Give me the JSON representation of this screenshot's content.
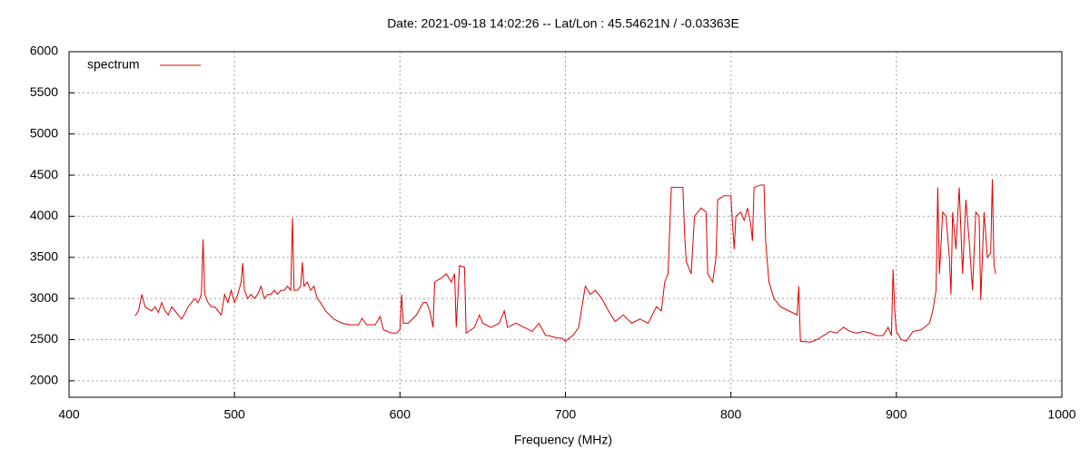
{
  "chart_data": {
    "type": "line",
    "title": "Date: 2021-09-18 14:02:26  --  Lat/Lon : 45.54621N / -0.03363E",
    "x_label": "Frequency (MHz)",
    "xlim": [
      400,
      1000
    ],
    "xticks": [
      400,
      500,
      600,
      700,
      800,
      900,
      1000
    ],
    "ylim": [
      1800,
      6000
    ],
    "yticks": [
      2000,
      2500,
      3000,
      3500,
      4000,
      4500,
      5000,
      5500,
      6000
    ],
    "grid": true,
    "legend": "top-left",
    "x": [
      440,
      442,
      444,
      446,
      448,
      450,
      452,
      454,
      456,
      458,
      460,
      462,
      464,
      466,
      468,
      470,
      472,
      474,
      476,
      478,
      480,
      481,
      482,
      484,
      486,
      488,
      490,
      492,
      494,
      496,
      498,
      500,
      502,
      504,
      505,
      506,
      508,
      510,
      512,
      514,
      516,
      518,
      520,
      522,
      524,
      526,
      528,
      530,
      532,
      534,
      535,
      536,
      538,
      540,
      541,
      542,
      544,
      546,
      548,
      550,
      552,
      555,
      560,
      565,
      570,
      575,
      577,
      580,
      585,
      588,
      590,
      595,
      598,
      600,
      601,
      602,
      605,
      610,
      614,
      616,
      618,
      620,
      621,
      625,
      628,
      631,
      633,
      634,
      636,
      639,
      640,
      645,
      648,
      650,
      655,
      660,
      663,
      665,
      670,
      675,
      680,
      684,
      688,
      690,
      695,
      698,
      700,
      705,
      708,
      710,
      712,
      715,
      718,
      722,
      726,
      730,
      735,
      740,
      745,
      750,
      755,
      758,
      760,
      762,
      764,
      768,
      771,
      772,
      773,
      776,
      778,
      782,
      785,
      786,
      789,
      791,
      792,
      796,
      800,
      801,
      802,
      803,
      806,
      808,
      810,
      812,
      813,
      814,
      818,
      820,
      821,
      823,
      826,
      830,
      835,
      840,
      841,
      842,
      848,
      852,
      856,
      860,
      864,
      868,
      872,
      876,
      880,
      884,
      888,
      892,
      895,
      897,
      898,
      899,
      900,
      903,
      906,
      910,
      915,
      920,
      922,
      924,
      925,
      926,
      928,
      930,
      932,
      933,
      934,
      936,
      938,
      940,
      942,
      944,
      946,
      948,
      950,
      951,
      953,
      955,
      957,
      958,
      959,
      960
    ],
    "series": [
      {
        "name": "spectrum",
        "color": "#dd0000",
        "values": [
          2790,
          2850,
          3050,
          2900,
          2870,
          2850,
          2900,
          2830,
          2950,
          2850,
          2800,
          2900,
          2850,
          2800,
          2750,
          2820,
          2900,
          2950,
          3000,
          2950,
          3050,
          3720,
          3050,
          2950,
          2900,
          2900,
          2850,
          2800,
          3050,
          2950,
          3100,
          2950,
          3050,
          3200,
          3430,
          3100,
          3000,
          3050,
          3000,
          3050,
          3150,
          3000,
          3050,
          3050,
          3100,
          3050,
          3100,
          3100,
          3150,
          3100,
          3980,
          3100,
          3100,
          3150,
          3440,
          3150,
          3200,
          3100,
          3150,
          3000,
          2950,
          2850,
          2750,
          2700,
          2680,
          2680,
          2760,
          2680,
          2680,
          2780,
          2620,
          2580,
          2580,
          2620,
          3050,
          2700,
          2700,
          2800,
          2950,
          2950,
          2850,
          2650,
          3200,
          3250,
          3300,
          3200,
          3300,
          2650,
          3400,
          3380,
          2580,
          2650,
          2800,
          2700,
          2650,
          2700,
          2850,
          2650,
          2700,
          2650,
          2600,
          2700,
          2550,
          2550,
          2520,
          2520,
          2480,
          2560,
          2650,
          2900,
          3150,
          3050,
          3100,
          3000,
          2850,
          2720,
          2800,
          2700,
          2750,
          2700,
          2900,
          2850,
          3200,
          3300,
          4350,
          4350,
          4350,
          3800,
          3450,
          3300,
          4000,
          4100,
          4050,
          3300,
          3200,
          3500,
          4200,
          4250,
          4250,
          3900,
          3600,
          4000,
          4050,
          3950,
          4100,
          3900,
          3700,
          4350,
          4380,
          4380,
          3700,
          3200,
          3000,
          2900,
          2850,
          2800,
          3150,
          2480,
          2470,
          2500,
          2550,
          2600,
          2580,
          2650,
          2600,
          2580,
          2600,
          2580,
          2550,
          2550,
          2650,
          2550,
          3350,
          2850,
          2600,
          2500,
          2480,
          2600,
          2620,
          2700,
          2850,
          3100,
          4350,
          3300,
          4050,
          4000,
          3500,
          3050,
          4050,
          3600,
          4350,
          3300,
          4200,
          3700,
          3100,
          4050,
          4000,
          2980,
          4050,
          3500,
          3550,
          4450,
          3400,
          3300
        ]
      }
    ]
  }
}
